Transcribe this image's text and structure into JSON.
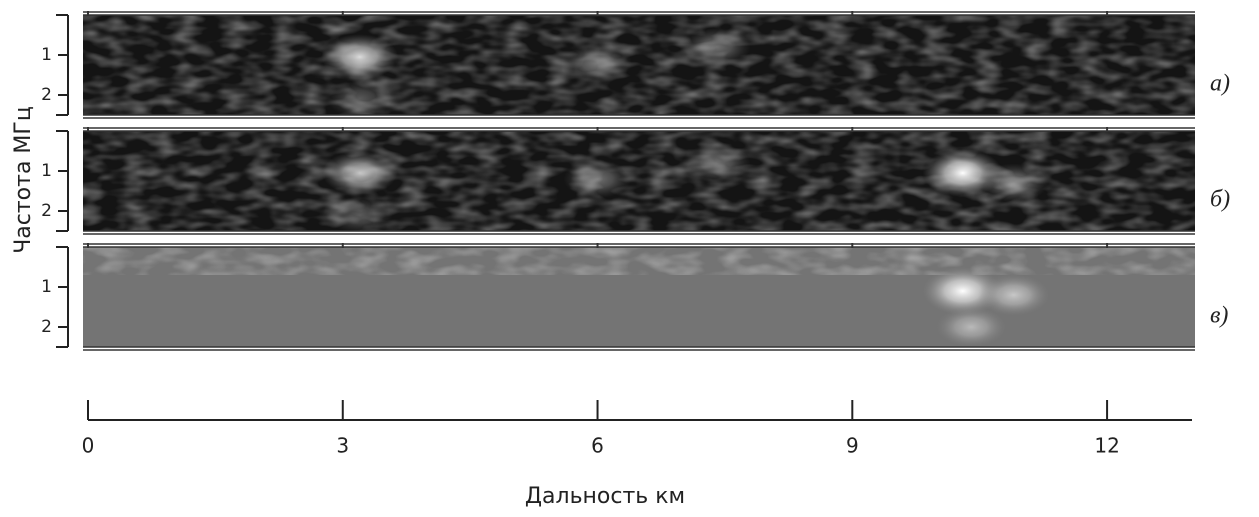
{
  "y_label": "Частота МГц",
  "x_label": "Дальность   км",
  "xlim": [
    0,
    13
  ],
  "xticks": [
    0,
    3,
    6,
    9,
    12
  ],
  "chart_data": [
    {
      "type": "heatmap",
      "label": "а)",
      "ylim": [
        0,
        2.5
      ],
      "yticks": [
        1,
        2
      ],
      "background": "#141414",
      "spots": [
        {
          "x": 3.2,
          "y": 1.05,
          "v": 0.85
        },
        {
          "x": 6.0,
          "y": 1.2,
          "v": 0.45
        },
        {
          "x": 7.4,
          "y": 0.8,
          "v": 0.4
        },
        {
          "x": 3.2,
          "y": 2.1,
          "v": 0.3
        }
      ]
    },
    {
      "type": "heatmap",
      "label": "б)",
      "ylim": [
        0,
        2.5
      ],
      "yticks": [
        1,
        2
      ],
      "background": "#141414",
      "spots": [
        {
          "x": 3.2,
          "y": 1.05,
          "v": 0.75
        },
        {
          "x": 6.0,
          "y": 1.2,
          "v": 0.4
        },
        {
          "x": 7.4,
          "y": 0.8,
          "v": 0.4
        },
        {
          "x": 10.3,
          "y": 1.05,
          "v": 1
        },
        {
          "x": 10.9,
          "y": 1.3,
          "v": 0.45
        },
        {
          "x": 3.2,
          "y": 2.1,
          "v": 0.3
        }
      ]
    },
    {
      "type": "heatmap",
      "label": "в)",
      "ylim": [
        0,
        2.5
      ],
      "yticks": [
        1,
        2
      ],
      "background": "#747474",
      "spots": [
        {
          "x": 10.3,
          "y": 1.1,
          "v": 1
        },
        {
          "x": 10.9,
          "y": 1.2,
          "v": 0.6
        },
        {
          "x": 10.4,
          "y": 2.0,
          "v": 0.5
        }
      ]
    }
  ]
}
